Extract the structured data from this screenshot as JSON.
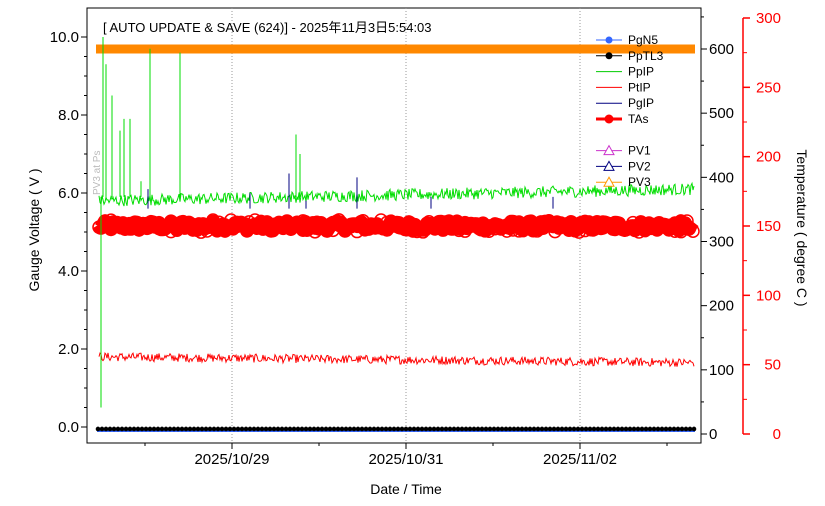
{
  "chart_data": {
    "type": "line",
    "title": "[ AUTO UPDATE & SAVE (624)] - 2025年11月3日5:54:03",
    "xlabel": "Date / Time",
    "ylabel_left": "Gauge Voltage ( V )",
    "ylabel_right": "Temperature ( degree C )",
    "x_ticks": [
      "2025/10/29",
      "2025/10/31",
      "2025/11/02"
    ],
    "x_range": [
      "2025/10/27 12:00",
      "2025/11/03 06:00"
    ],
    "ylim_left": [
      -0.2,
      10.6
    ],
    "left_ticks": [
      "0.0",
      "2.0",
      "4.0",
      "6.0",
      "8.0",
      "10.0"
    ],
    "left_tick_values": [
      0,
      2,
      4,
      6,
      8,
      10
    ],
    "ylim_mid": [
      -10,
      650
    ],
    "mid_ticks": [
      "0",
      "100",
      "200",
      "300",
      "400",
      "500",
      "600"
    ],
    "mid_tick_values": [
      0,
      100,
      200,
      300,
      400,
      500,
      600
    ],
    "ylim_right": [
      -5,
      300
    ],
    "right_ticks": [
      "0",
      "50",
      "100",
      "150",
      "200",
      "250",
      "300"
    ],
    "right_tick_values": [
      0,
      50,
      100,
      150,
      200,
      250,
      300
    ],
    "grid": "vertical dotted at date ticks",
    "legend_position": "top-right",
    "legend": [
      {
        "name": "PgN5",
        "color": "#3366ff",
        "marker": "dot-line"
      },
      {
        "name": "PpTL3",
        "color": "#000000",
        "marker": "dot-line"
      },
      {
        "name": "PpIP",
        "color": "#00cc00",
        "marker": "line"
      },
      {
        "name": "PtIP",
        "color": "#ff0000",
        "marker": "line"
      },
      {
        "name": "PgIP",
        "color": "#000080",
        "marker": "line"
      },
      {
        "name": "TAs",
        "color": "#ff0000",
        "marker": "thick-dot-line"
      },
      {
        "name": "",
        "color": "",
        "marker": "none"
      },
      {
        "name": "PV1",
        "color": "#cc33cc",
        "marker": "triangle"
      },
      {
        "name": "PV2",
        "color": "#000080",
        "marker": "triangle"
      },
      {
        "name": "PV3",
        "color": "#ff9900",
        "marker": "triangle"
      }
    ],
    "series": [
      {
        "name": "PpIP",
        "axis": "left",
        "color": "#00cc00",
        "approx_level": 6.0,
        "start_level": 5.8,
        "end_level": 6.1
      },
      {
        "name": "PtIP",
        "axis": "left",
        "color": "#ff0000",
        "approx_level": 1.75,
        "start_level": 1.8,
        "end_level": 1.65
      },
      {
        "name": "PgIP",
        "axis": "left",
        "color": "#000080",
        "approx_level": 5.7
      },
      {
        "name": "TAs",
        "axis": "right",
        "color": "#ff0000",
        "approx_level": 150
      },
      {
        "name": "PgN5",
        "axis": "left",
        "color": "#3366ff",
        "approx_level": -0.05
      },
      {
        "name": "PpTL3",
        "axis": "left",
        "color": "#000000",
        "approx_level": -0.05
      },
      {
        "name": "PV3",
        "axis": "mid",
        "color": "#ff9900",
        "approx_level": 600
      }
    ],
    "watermark_text": "PV3 at Ps"
  },
  "colors": {
    "green": "#00dd00",
    "red": "#ff0000",
    "orange": "#ff8800",
    "navy": "#000080",
    "blue": "#3366ff",
    "grid": "#999999"
  }
}
